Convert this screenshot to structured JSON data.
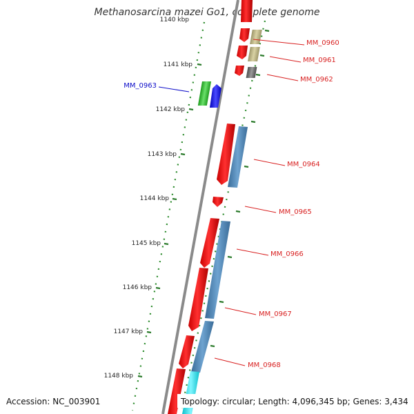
{
  "title": "Methanosarcina mazei Go1, complete genome",
  "accession": "Accession: NC_003901",
  "topology": "Topology: circular; Length: 4,096,345 bp; Genes: 3,434",
  "ticks": [
    "1140 kbp",
    "1141 kbp",
    "1142 kbp",
    "1143 kbp",
    "1144 kbp",
    "1145 kbp",
    "1146 kbp",
    "1147 kbp",
    "1148 kbp"
  ],
  "genes": [
    {
      "label": "MM_0960",
      "color": "#d81f1f"
    },
    {
      "label": "MM_0961",
      "color": "#d81f1f"
    },
    {
      "label": "MM_0962",
      "color": "#d81f1f"
    },
    {
      "label": "MM_0963",
      "color": "#0a0ac8"
    },
    {
      "label": "MM_0964",
      "color": "#d81f1f"
    },
    {
      "label": "MM_0965",
      "color": "#d81f1f"
    },
    {
      "label": "MM_0966",
      "color": "#d81f1f"
    },
    {
      "label": "MM_0967",
      "color": "#d81f1f"
    },
    {
      "label": "MM_0968",
      "color": "#d81f1f"
    }
  ],
  "colors": {
    "cds": "#ee1111",
    "cog_blue": "#4a82b4",
    "cog_olive": "#bfb684",
    "cog_gray": "#707070",
    "cog_green": "#33c433",
    "cog_navy": "#1111ee",
    "cog_cyan": "#22e4f0",
    "tick": "#2a7a2a",
    "backbone": "#8a8a8a"
  }
}
